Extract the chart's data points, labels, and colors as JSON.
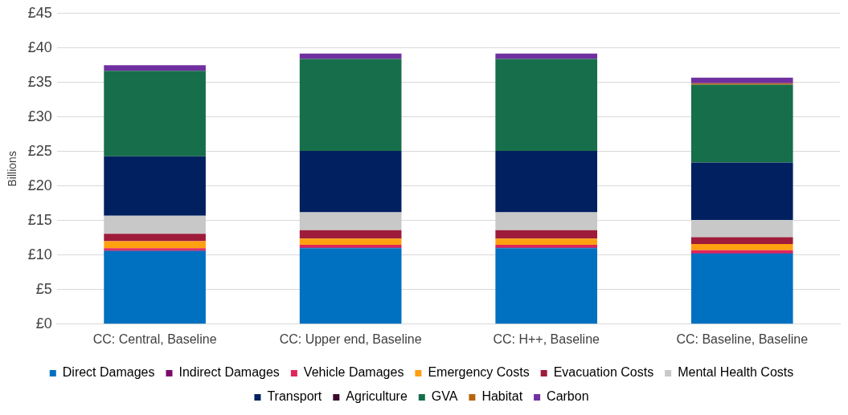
{
  "chart_data": {
    "type": "bar",
    "stacked": true,
    "ylabel": "Billions",
    "categories": [
      "CC: Central, Baseline",
      "CC: Upper end, Baseline",
      "CC: H++, Baseline",
      "CC: Baseline, Baseline"
    ],
    "ylim": [
      0,
      45
    ],
    "yticks": [
      {
        "value": 0,
        "label": "£0"
      },
      {
        "value": 5,
        "label": "£5"
      },
      {
        "value": 10,
        "label": "£10"
      },
      {
        "value": 15,
        "label": "£15"
      },
      {
        "value": 20,
        "label": "£20"
      },
      {
        "value": 25,
        "label": "£25"
      },
      {
        "value": 30,
        "label": "£30"
      },
      {
        "value": 35,
        "label": "£35"
      },
      {
        "value": 40,
        "label": "£40"
      },
      {
        "value": 45,
        "label": "£45"
      }
    ],
    "grid": "y",
    "legend": "bottom",
    "series": [
      {
        "name": "Direct Damages",
        "color": "#0070c0",
        "values": [
          10.6,
          11.0,
          11.0,
          10.2
        ]
      },
      {
        "name": "Indirect Damages",
        "color": "#7b0a6b",
        "values": [
          0.1,
          0.1,
          0.1,
          0.1
        ]
      },
      {
        "name": "Vehicle Damages",
        "color": "#e0245a",
        "values": [
          0.3,
          0.4,
          0.4,
          0.4
        ]
      },
      {
        "name": "Emergency Costs",
        "color": "#ffa010",
        "values": [
          1.0,
          0.9,
          0.9,
          0.9
        ]
      },
      {
        "name": "Evacuation Costs",
        "color": "#9e1c3a",
        "values": [
          1.1,
          1.2,
          1.2,
          1.0
        ]
      },
      {
        "name": "Mental Health Costs",
        "color": "#c8c8c8",
        "values": [
          2.6,
          2.6,
          2.6,
          2.5
        ]
      },
      {
        "name": "Transport",
        "color": "#002060",
        "values": [
          8.6,
          8.9,
          8.9,
          8.3
        ]
      },
      {
        "name": "Agriculture",
        "color": "#3b0a2e",
        "values": [
          0,
          0,
          0,
          0
        ]
      },
      {
        "name": "GVA",
        "color": "#176e4a",
        "values": [
          12.4,
          13.3,
          13.3,
          11.3
        ]
      },
      {
        "name": "Habitat",
        "color": "#b8650c",
        "values": [
          0,
          0,
          0,
          0.2
        ]
      },
      {
        "name": "Carbon",
        "color": "#7030a0",
        "values": [
          0.8,
          0.8,
          0.8,
          0.8
        ]
      }
    ]
  }
}
